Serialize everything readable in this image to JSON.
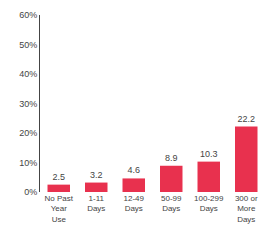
{
  "chart_data": {
    "type": "bar",
    "categories": [
      "No Past\nYear\nUse",
      "1-11\nDays",
      "12-49\nDays",
      "50-99\nDays",
      "100-299\nDays",
      "300 or\nMore\nDays"
    ],
    "values": [
      2.5,
      3.2,
      4.6,
      8.9,
      10.3,
      22.2
    ],
    "color": "#e8314e",
    "ylim": [
      0,
      60
    ],
    "yticks": [
      {
        "value": 0,
        "label": "0%"
      },
      {
        "value": 10,
        "label": "10%"
      },
      {
        "value": 20,
        "label": "20%"
      },
      {
        "value": 30,
        "label": "30%"
      },
      {
        "value": 40,
        "label": "40%"
      },
      {
        "value": 50,
        "label": "50%"
      },
      {
        "value": 60,
        "label": "60%"
      }
    ],
    "grid": false,
    "data_labels": true
  }
}
